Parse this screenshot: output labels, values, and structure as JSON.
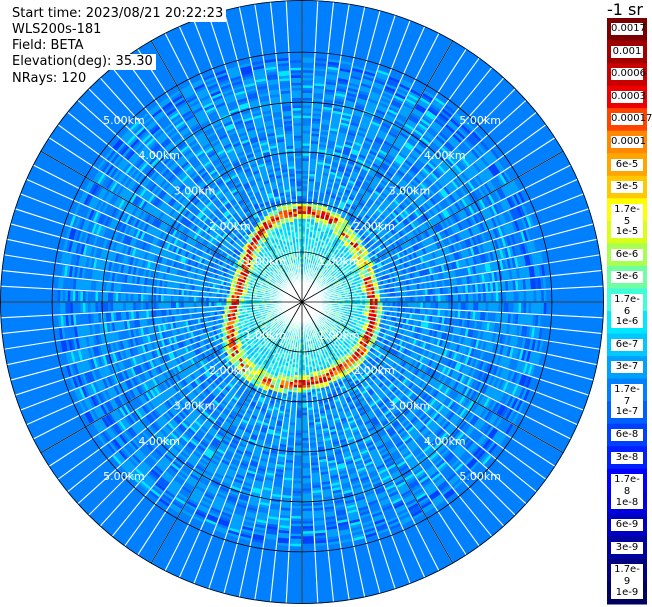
{
  "header": {
    "start_time": "Start time: 2023/08/21 20:22:23",
    "instrument": "WLS200s-181",
    "field": "Field: BETA",
    "elevation": "Elevation(deg): 35.30",
    "nrays": "NRays: 120"
  },
  "colorbar": {
    "unit": "-1 sr",
    "labels": [
      "0.0017",
      "0.001",
      "0.0006",
      "0.0003",
      "0.00017",
      "0.0001",
      "6e-5",
      "3e-5",
      "1.7e-5",
      "1e-5",
      "6e-6",
      "3e-6",
      "1.7e-6",
      "1e-6",
      "6e-7",
      "3e-7",
      "1.7e-7",
      "1e-7",
      "6e-8",
      "3e-8",
      "1.7e-8",
      "1e-8",
      "6e-9",
      "3e-9",
      "1.7e-9",
      "1e-9"
    ],
    "colors": [
      "#7a0000",
      "#a00000",
      "#c80000",
      "#ee0000",
      "#ff4400",
      "#ff8800",
      "#ffa500",
      "#ffc800",
      "#ffff00",
      "#d8ff1a",
      "#a8ff50",
      "#70ffa0",
      "#40ffd8",
      "#00e8ff",
      "#00c8ff",
      "#00a0ff",
      "#0080ff",
      "#0060ff",
      "#0040ff",
      "#0020ff",
      "#0000ff",
      "#0000e0",
      "#0000c0",
      "#0000a0",
      "#000080",
      "#000060"
    ]
  },
  "chart_data": {
    "type": "ppi",
    "title": "",
    "n_rays": 120,
    "range_max_km": 5.8,
    "range_rings_km": [
      1,
      2,
      3,
      4,
      5
    ],
    "ring_labels": [
      "1.00km",
      "2.00km",
      "3.00km",
      "4.00km",
      "5.00km"
    ],
    "ring_label_azimuths_deg": [
      315,
      45,
      135,
      225
    ],
    "spokes_deg": [
      0,
      30,
      60,
      90,
      120,
      150,
      180,
      210,
      240,
      270,
      300,
      330
    ],
    "features": {
      "near_field": {
        "range_km": [
          0,
          1.2
        ],
        "level": "1.7e-6"
      },
      "cloud_ring": {
        "range_km": [
          1.4,
          2.5
        ],
        "peak_level": "0.0003",
        "note": "ring of high backscatter around 1.5-2.5 km"
      },
      "far_field": {
        "range_km": [
          2.5,
          5.8
        ],
        "level": "3e-7"
      }
    }
  }
}
